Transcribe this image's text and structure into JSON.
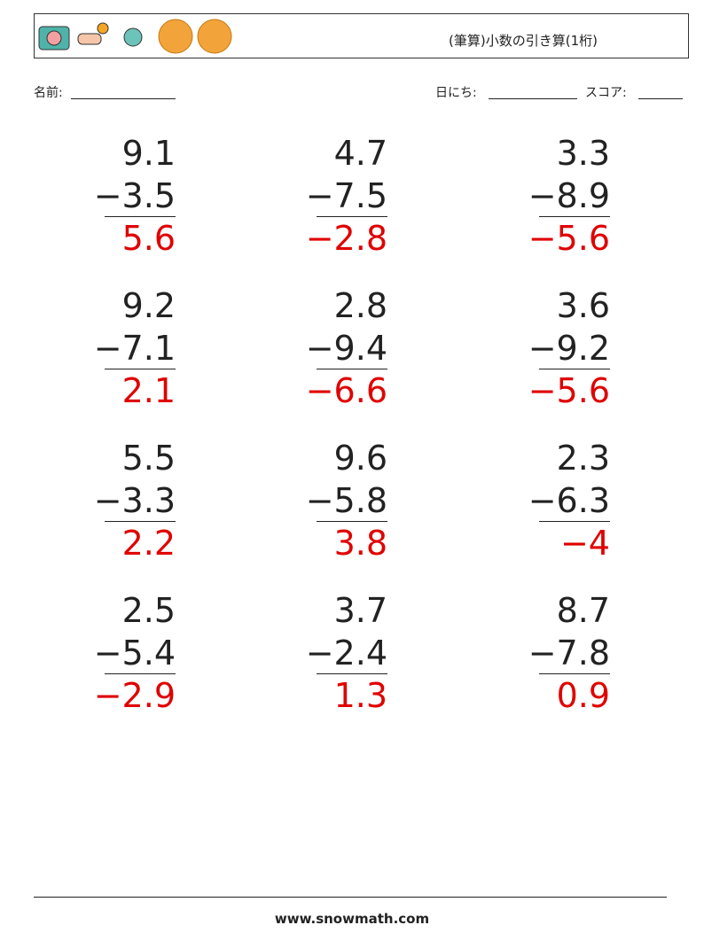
{
  "header": {
    "title": "(筆算)小数の引き算(1桁)"
  },
  "fields": {
    "name": "名前:",
    "date": "日にち:",
    "score": "スコア:"
  },
  "problems": [
    {
      "top": "9.1",
      "bottom": "−3.5",
      "answer": "5.6"
    },
    {
      "top": "4.7",
      "bottom": "−7.5",
      "answer": "−2.8"
    },
    {
      "top": "3.3",
      "bottom": "−8.9",
      "answer": "−5.6"
    },
    {
      "top": "9.2",
      "bottom": "−7.1",
      "answer": "2.1"
    },
    {
      "top": "2.8",
      "bottom": "−9.4",
      "answer": "−6.6"
    },
    {
      "top": "3.6",
      "bottom": "−9.2",
      "answer": "−5.6"
    },
    {
      "top": "5.5",
      "bottom": "−3.3",
      "answer": "2.2"
    },
    {
      "top": "9.6",
      "bottom": "−5.8",
      "answer": "3.8"
    },
    {
      "top": "2.3",
      "bottom": "−6.3",
      "answer": "−4"
    },
    {
      "top": "2.5",
      "bottom": "−5.4",
      "answer": "−2.9"
    },
    {
      "top": "3.7",
      "bottom": "−2.4",
      "answer": "1.3"
    },
    {
      "top": "8.7",
      "bottom": "−7.8",
      "answer": "0.9"
    }
  ],
  "footer": {
    "site": "www.snowmath.com"
  }
}
